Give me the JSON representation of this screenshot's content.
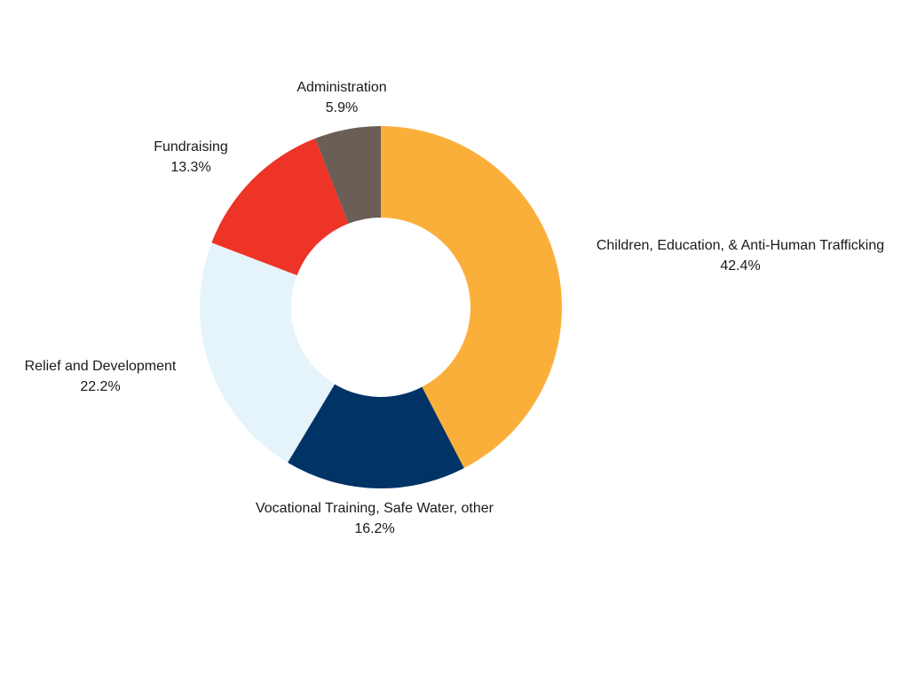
{
  "chart_data": {
    "type": "pie",
    "title": "",
    "categories": [
      "Children, Education, & Anti-Human Trafficking",
      "Vocational Training, Safe Water, other",
      "Relief and Development",
      "Fundraising",
      "Administration"
    ],
    "values": [
      42.4,
      16.2,
      22.2,
      13.3,
      5.9
    ],
    "value_labels": [
      "42.4%",
      "16.2%",
      "22.2%",
      "13.3%",
      "5.9%"
    ],
    "colors": [
      "#FBAF3B",
      "#003366",
      "#E4F4FA",
      "#EE3327",
      "#6B5E57"
    ],
    "donut": true,
    "start": "12 o'clock",
    "direction": "clockwise",
    "legend": "none",
    "labels": "outside"
  }
}
